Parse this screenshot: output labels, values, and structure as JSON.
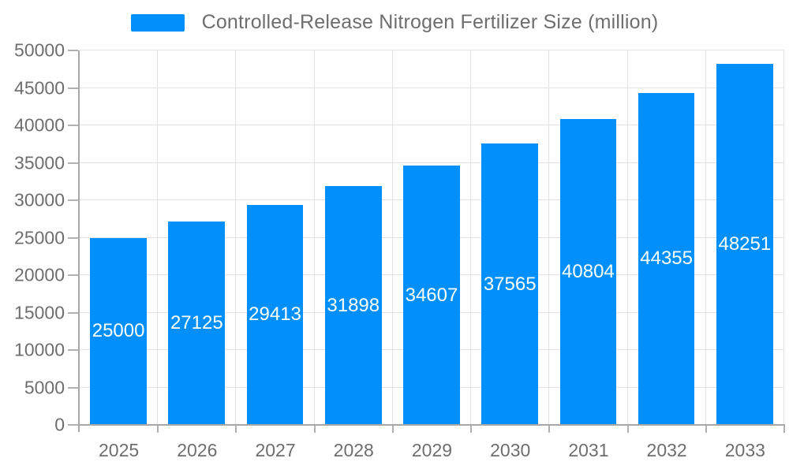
{
  "chart_data": {
    "type": "bar",
    "title": "Controlled-Release Nitrogen Fertilizer Size (million)",
    "categories": [
      "2025",
      "2026",
      "2027",
      "2028",
      "2029",
      "2030",
      "2031",
      "2032",
      "2033"
    ],
    "values": [
      25000,
      27125,
      29413,
      31898,
      34607,
      37565,
      40804,
      44355,
      48251
    ],
    "series": [
      {
        "name": "Controlled-Release Nitrogen Fertilizer Size (million)",
        "values": [
          25000,
          27125,
          29413,
          31898,
          34607,
          37565,
          40804,
          44355,
          48251
        ]
      }
    ],
    "xlabel": "",
    "ylabel": "",
    "ylim": [
      0,
      50000
    ],
    "ytick_step": 5000,
    "ytick_labels": [
      "0",
      "5000",
      "10000",
      "15000",
      "20000",
      "25000",
      "30000",
      "35000",
      "40000",
      "45000",
      "50000"
    ],
    "grid": "horizontal and vertical light gray gridlines",
    "legend_position": "top-center",
    "data_labels": "values shown in white, centered inside each bar"
  },
  "colors": {
    "bar": "#008FFB",
    "gridline": "#e3e3e3",
    "axis_line": "#a8a8a8",
    "axis_label_text": "#6e6e6e",
    "legend_text": "#6e6e6e",
    "data_label_text": "#ffffff",
    "background": "#ffffff"
  }
}
